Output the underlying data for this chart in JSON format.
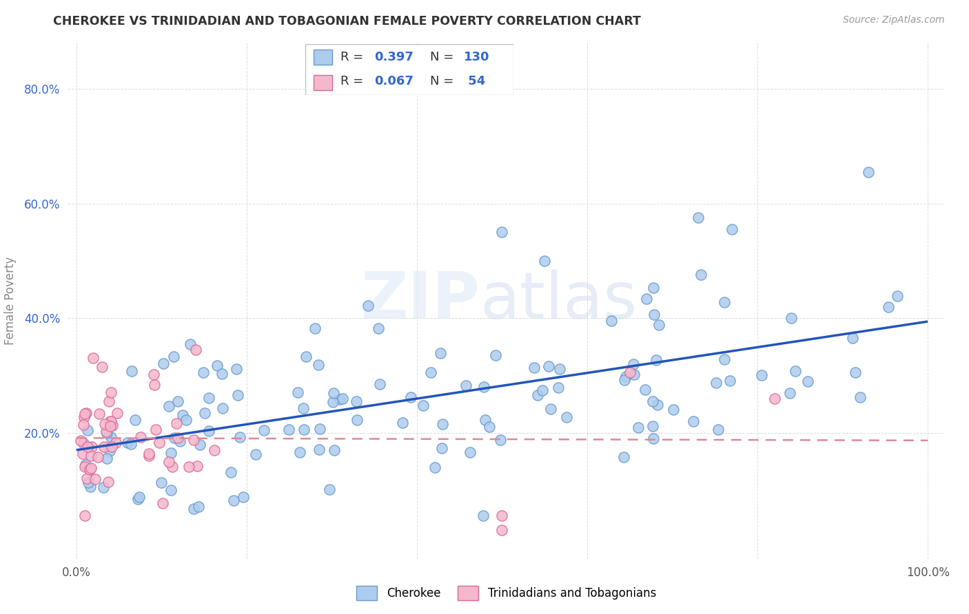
{
  "title": "CHEROKEE VS TRINIDADIAN AND TOBAGONIAN FEMALE POVERTY CORRELATION CHART",
  "source": "Source: ZipAtlas.com",
  "ylabel": "Female Poverty",
  "xlim": [
    -0.01,
    1.02
  ],
  "ylim": [
    -0.02,
    0.88
  ],
  "cherokee_color": "#aeccee",
  "trinidadian_color": "#f4b8cc",
  "cherokee_edge": "#6699cc",
  "trinidadian_edge": "#dd6699",
  "trend_cherokee_color": "#2255bb",
  "trend_trinidadian_color": "#dd8899",
  "label_color_blue": "#3366cc",
  "cherokee_R": 0.397,
  "cherokee_N": 130,
  "trinidadian_R": 0.067,
  "trinidadian_N": 54,
  "background_color": "#ffffff",
  "grid_color": "#cccccc",
  "title_color": "#333333",
  "source_color": "#999999",
  "ylabel_color": "#888888",
  "ytick_color": "#3366cc",
  "xtick_color": "#555555"
}
